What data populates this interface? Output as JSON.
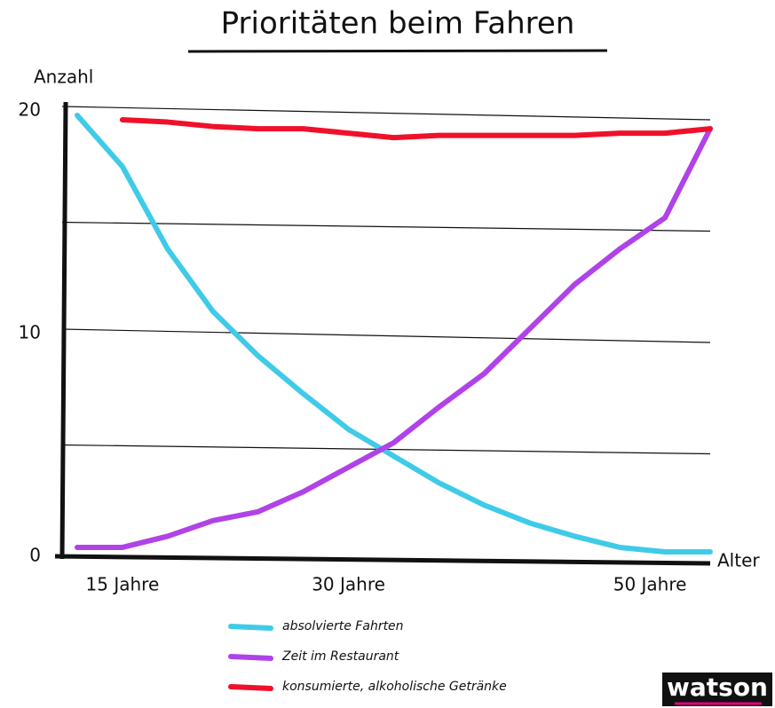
{
  "chart_data": {
    "type": "line",
    "title": "Prioritäten beim Fahren",
    "y_label": "Anzahl",
    "x_label": "Alter",
    "x": [
      12,
      15,
      18,
      21,
      24,
      27,
      30,
      33,
      36,
      39,
      42,
      45,
      48,
      51,
      54
    ],
    "xlim": [
      11,
      54
    ],
    "xticks": [
      {
        "value": 15,
        "label": "15 Jahre"
      },
      {
        "value": 30,
        "label": "30 Jahre"
      },
      {
        "value": 50,
        "label": "50 Jahre"
      }
    ],
    "ylim": [
      0,
      20
    ],
    "yticks": [
      0,
      10,
      20
    ],
    "minor_gridlines": [
      5,
      15
    ],
    "grid": true,
    "series": [
      {
        "name": "absolvierte Fahrten",
        "color": "#3fcbe8",
        "values": [
          19.8,
          17.5,
          13.8,
          11.0,
          9.0,
          7.3,
          5.7,
          4.5,
          3.3,
          2.3,
          1.5,
          0.9,
          0.4,
          0.2,
          0.2
        ]
      },
      {
        "name": "Zeit im Restaurant",
        "color": "#b043e8",
        "values": [
          0.4,
          0.4,
          0.9,
          1.6,
          2.0,
          2.9,
          4.0,
          5.1,
          6.7,
          8.2,
          10.2,
          12.2,
          13.8,
          15.2,
          19.2
        ]
      },
      {
        "name": "konsumierte, alkoholische Getränke",
        "color": "#f0102a",
        "values": [
          null,
          19.6,
          19.5,
          19.3,
          19.2,
          19.2,
          19.0,
          18.8,
          18.9,
          18.9,
          18.9,
          18.9,
          19.0,
          19.0,
          19.2
        ]
      }
    ],
    "legend": "bottom",
    "source": "watson"
  }
}
